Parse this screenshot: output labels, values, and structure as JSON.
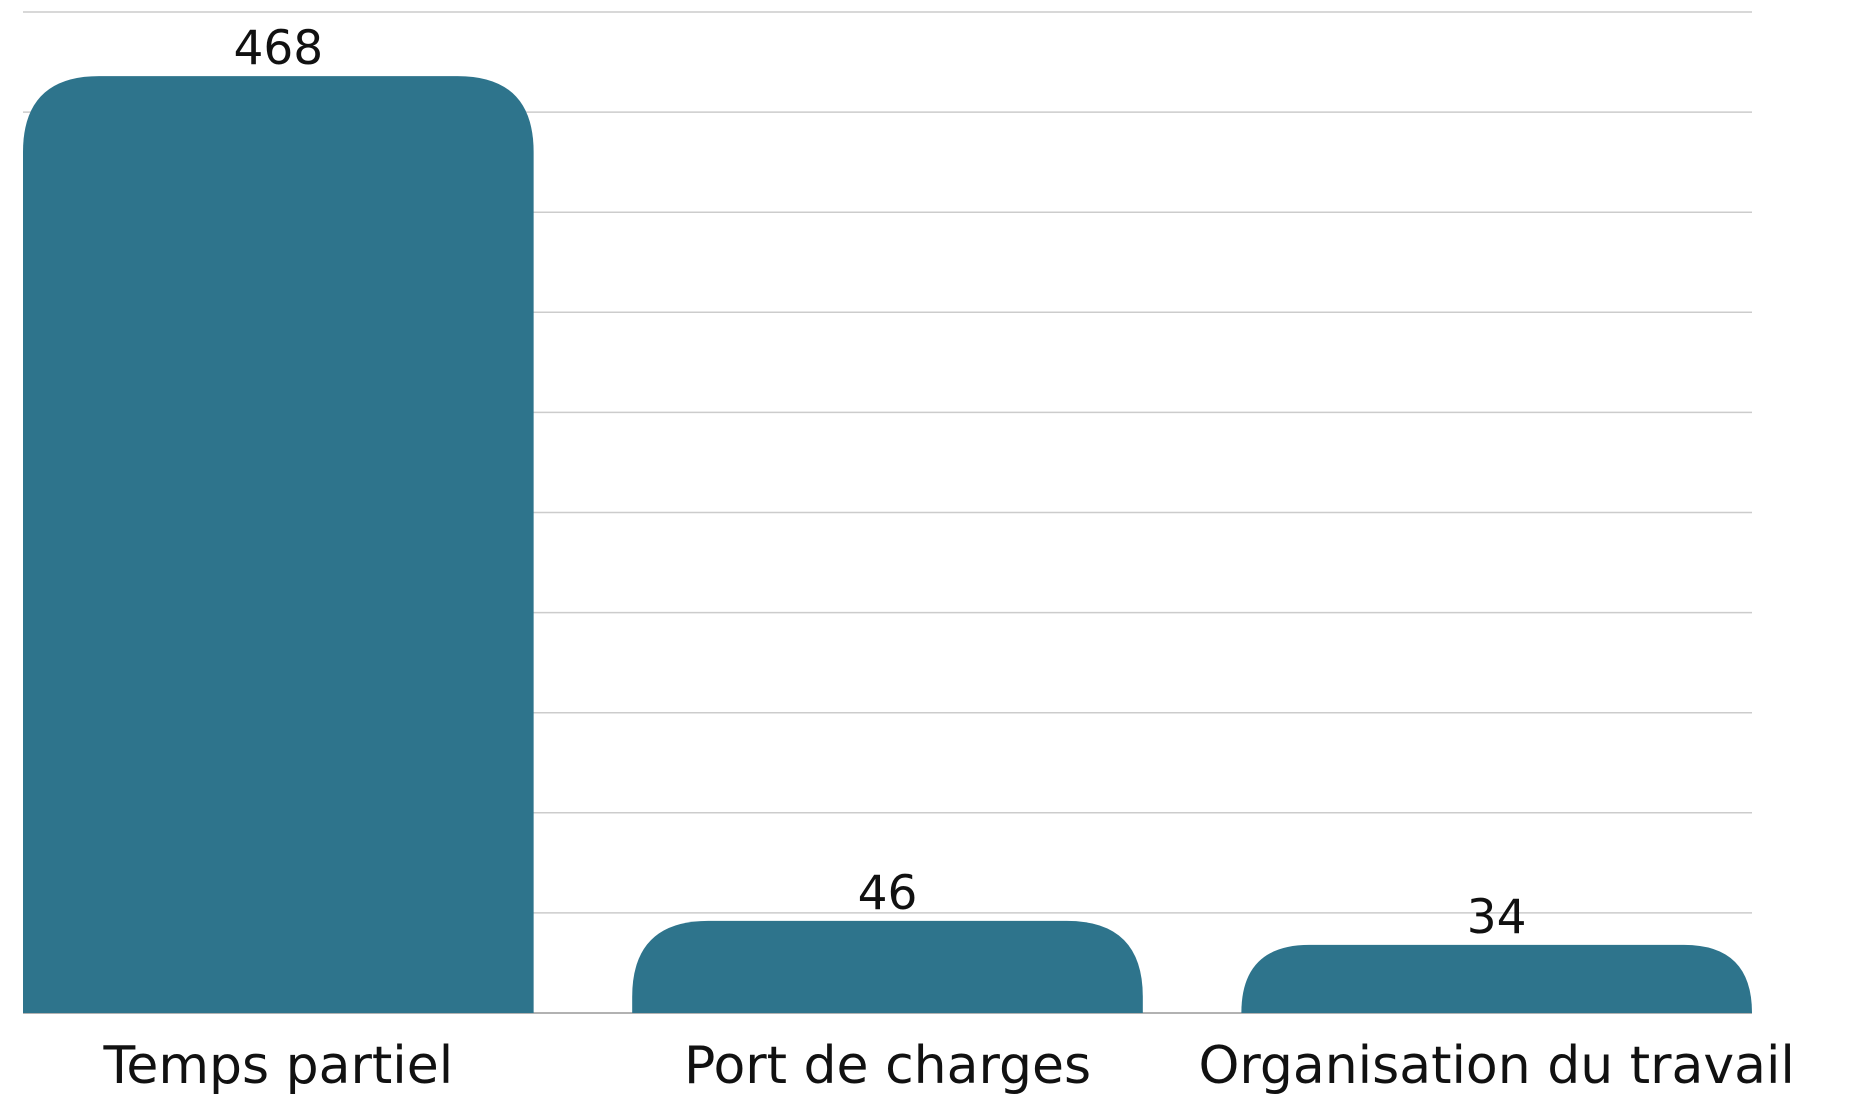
{
  "chart_data": {
    "type": "bar",
    "categories": [
      "Temps partiel",
      "Port de charges",
      "Organisation du travail"
    ],
    "values": [
      468,
      46,
      34
    ],
    "color": "#2e748c",
    "ylim": [
      0,
      500
    ],
    "yticks": [
      0,
      50,
      100,
      150,
      200,
      250,
      300,
      350,
      400,
      450,
      500
    ],
    "grid": true
  }
}
